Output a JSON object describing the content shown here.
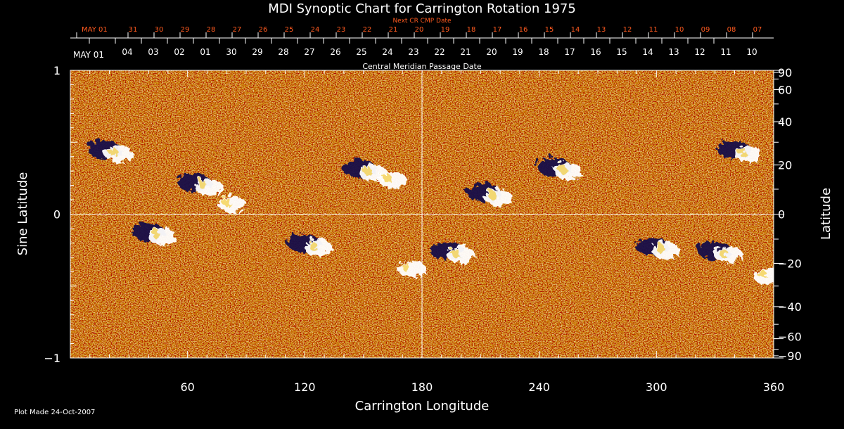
{
  "chart_data": {
    "type": "heatmap",
    "title": "MDI Synoptic Chart for Carrington Rotation 1975",
    "xlabel": "Carrington Longitude",
    "ylabel_left": "Sine Latitude",
    "ylabel_right": "Latitude",
    "xlim": [
      0,
      360
    ],
    "ylim": [
      -1,
      1
    ],
    "x_ticks": [
      60,
      120,
      180,
      240,
      300,
      360
    ],
    "y_ticks_left": [
      {
        "v": 1,
        "label": "1"
      },
      {
        "v": 0,
        "label": "0"
      },
      {
        "v": -1,
        "label": "−1"
      }
    ],
    "y_ticks_right": [
      90,
      60,
      40,
      20,
      0,
      -20,
      -40,
      -60,
      -90
    ],
    "top_axis_label": "Central Meridian Passage Date",
    "top_axis_dates": [
      "MAY 01",
      "04",
      "03",
      "02",
      "01",
      "30",
      "29",
      "28",
      "27",
      "26",
      "25",
      "24",
      "23",
      "22",
      "21",
      "20",
      "19",
      "18",
      "17",
      "16",
      "15",
      "14",
      "13",
      "12",
      "11",
      "10"
    ],
    "next_rotation_label": "Next CR CMP Date",
    "next_rotation_dates": [
      "MAY 01",
      "31",
      "30",
      "29",
      "28",
      "27",
      "26",
      "25",
      "24",
      "23",
      "22",
      "21",
      "20",
      "19",
      "18",
      "17",
      "16",
      "15",
      "14",
      "13",
      "12",
      "11",
      "10",
      "09",
      "08",
      "07"
    ],
    "crosshair": {
      "longitude": 180,
      "sine_latitude": 0
    },
    "colors": {
      "background_field": "#e0470c",
      "positive_polarity": "#ffffff",
      "negative_polarity": "#14124a",
      "orange_text": "#ff5a1f",
      "axis": "#ffffff"
    },
    "active_regions": [
      {
        "lon": 20,
        "sinlat": 0.45,
        "polarity": "mixed"
      },
      {
        "lon": 66,
        "sinlat": 0.22,
        "polarity": "mixed"
      },
      {
        "lon": 78,
        "sinlat": 0.1,
        "polarity": "positive"
      },
      {
        "lon": 150,
        "sinlat": 0.32,
        "polarity": "mixed"
      },
      {
        "lon": 160,
        "sinlat": 0.27,
        "polarity": "positive"
      },
      {
        "lon": 214,
        "sinlat": 0.15,
        "polarity": "mixed"
      },
      {
        "lon": 250,
        "sinlat": 0.33,
        "polarity": "mixed"
      },
      {
        "lon": 342,
        "sinlat": 0.45,
        "polarity": "mixed"
      },
      {
        "lon": 42,
        "sinlat": -0.12,
        "polarity": "mixed"
      },
      {
        "lon": 122,
        "sinlat": -0.2,
        "polarity": "mixed"
      },
      {
        "lon": 170,
        "sinlat": -0.35,
        "polarity": "positive"
      },
      {
        "lon": 195,
        "sinlat": -0.25,
        "polarity": "mixed"
      },
      {
        "lon": 300,
        "sinlat": -0.22,
        "polarity": "mixed"
      },
      {
        "lon": 332,
        "sinlat": -0.25,
        "polarity": "mixed"
      },
      {
        "lon": 352,
        "sinlat": -0.4,
        "polarity": "positive"
      }
    ]
  },
  "footer": {
    "plot_made": "Plot Made 24-Oct-2007"
  }
}
